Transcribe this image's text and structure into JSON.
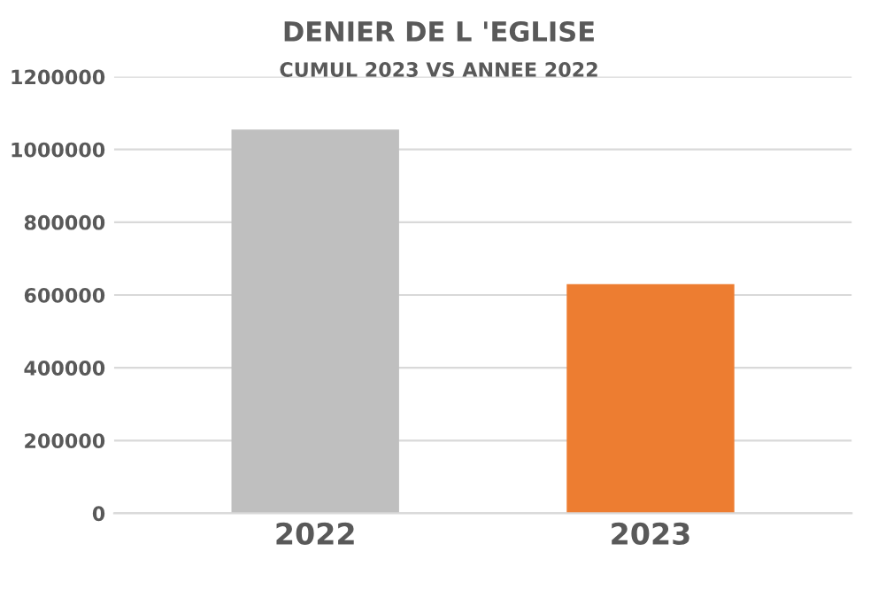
{
  "chart_data": {
    "type": "bar",
    "title": "DENIER DE L 'EGLISE",
    "subtitle": "CUMUL 2023 VS ANNEE 2022",
    "categories": [
      "2022",
      "2023"
    ],
    "values": [
      1055000,
      630000
    ],
    "colors": [
      "#bfbfbf",
      "#ed7d31"
    ],
    "ylim": [
      0,
      1200000
    ],
    "yticks": [
      0,
      200000,
      400000,
      600000,
      800000,
      1000000,
      1200000
    ],
    "grid": "y"
  }
}
